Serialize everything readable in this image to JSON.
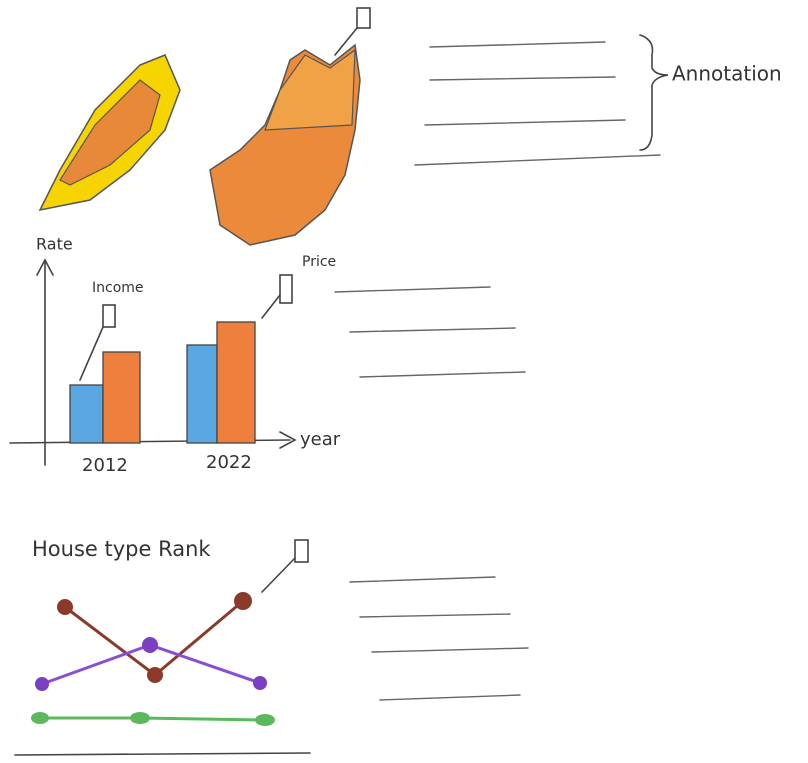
{
  "annotation": {
    "label": "Annotation"
  },
  "bar_sketch": {
    "y_label": "Rate",
    "x_label": "year",
    "series_labels": [
      "Income",
      "Price"
    ],
    "categories": [
      "2012",
      "2022"
    ]
  },
  "line_sketch": {
    "title": "House type Rank"
  }
}
